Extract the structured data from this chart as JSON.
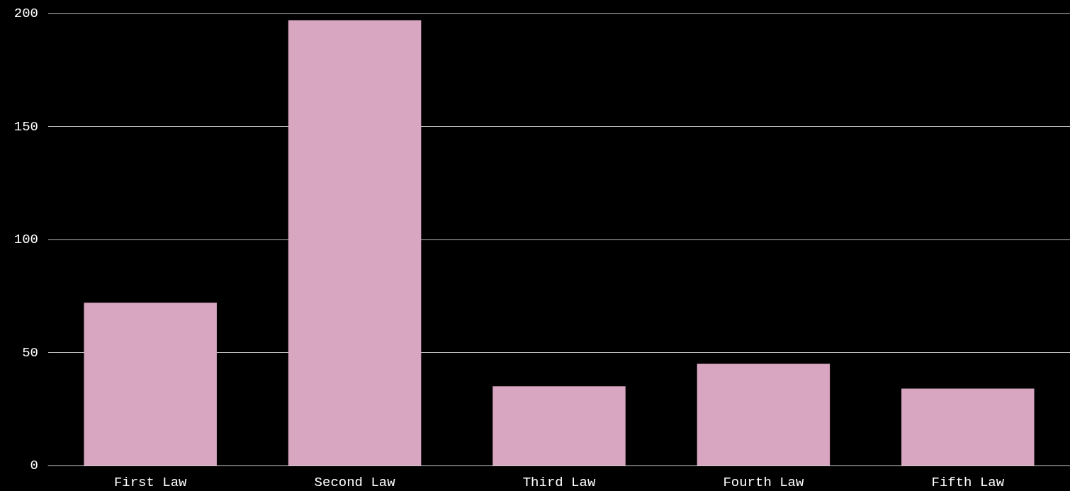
{
  "chart_data": {
    "type": "bar",
    "categories": [
      "First Law",
      "Second Law",
      "Third Law",
      "Fourth Law",
      "Fifth Law"
    ],
    "values": [
      72,
      197,
      35,
      45,
      34
    ],
    "color": "#d8a6c1",
    "ylim": [
      0,
      200
    ],
    "yticks": [
      0,
      50,
      100,
      150,
      200
    ],
    "grid": "y"
  }
}
